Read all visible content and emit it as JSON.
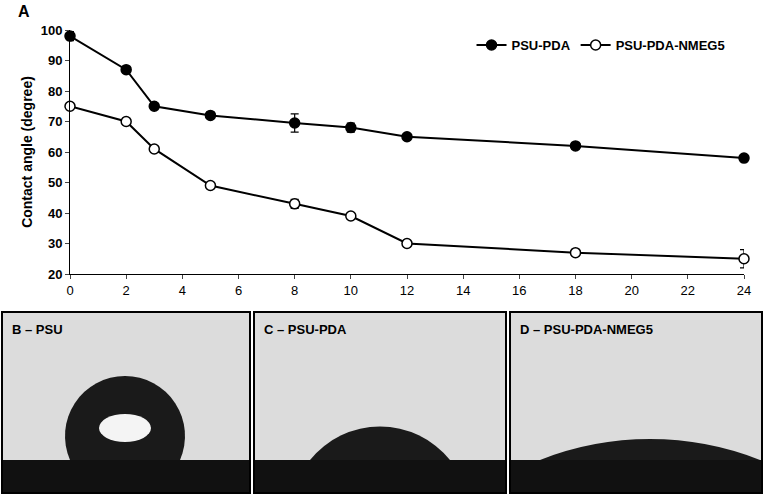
{
  "chart_data": {
    "type": "line",
    "panel_label": "A",
    "y_label": "Contact angle (degree)",
    "xlim": [
      0,
      24
    ],
    "xticks": [
      0,
      2,
      4,
      6,
      8,
      10,
      12,
      14,
      16,
      18,
      20,
      22,
      24
    ],
    "ylim": [
      20,
      100
    ],
    "yticks": [
      20,
      30,
      40,
      50,
      60,
      70,
      80,
      90,
      100
    ],
    "grid": false,
    "legend": "top-right",
    "series": [
      {
        "name": "PSU-PDA",
        "color": "#000000",
        "marker": "filled-circle",
        "x": [
          0,
          2,
          3,
          5,
          8,
          10,
          12,
          18,
          24
        ],
        "values": [
          98,
          87,
          75,
          72,
          69.5,
          68,
          65,
          62,
          58
        ],
        "errors": [
          1.5,
          1,
          1,
          1,
          3,
          1.5,
          1,
          1,
          1
        ]
      },
      {
        "name": "PSU-PDA-NMEG5",
        "color": "#000000",
        "marker": "open-circle",
        "x": [
          0,
          2,
          3,
          5,
          8,
          10,
          12,
          18,
          24
        ],
        "values": [
          75,
          70,
          61,
          49,
          43,
          39,
          30,
          27,
          25
        ],
        "errors": [
          1,
          1,
          1,
          1,
          1.5,
          1,
          1,
          1,
          3
        ]
      }
    ]
  },
  "panels": [
    {
      "label": "B – PSU"
    },
    {
      "label": "C – PSU-PDA"
    },
    {
      "label": "D – PSU-PDA-NMEG5"
    }
  ]
}
